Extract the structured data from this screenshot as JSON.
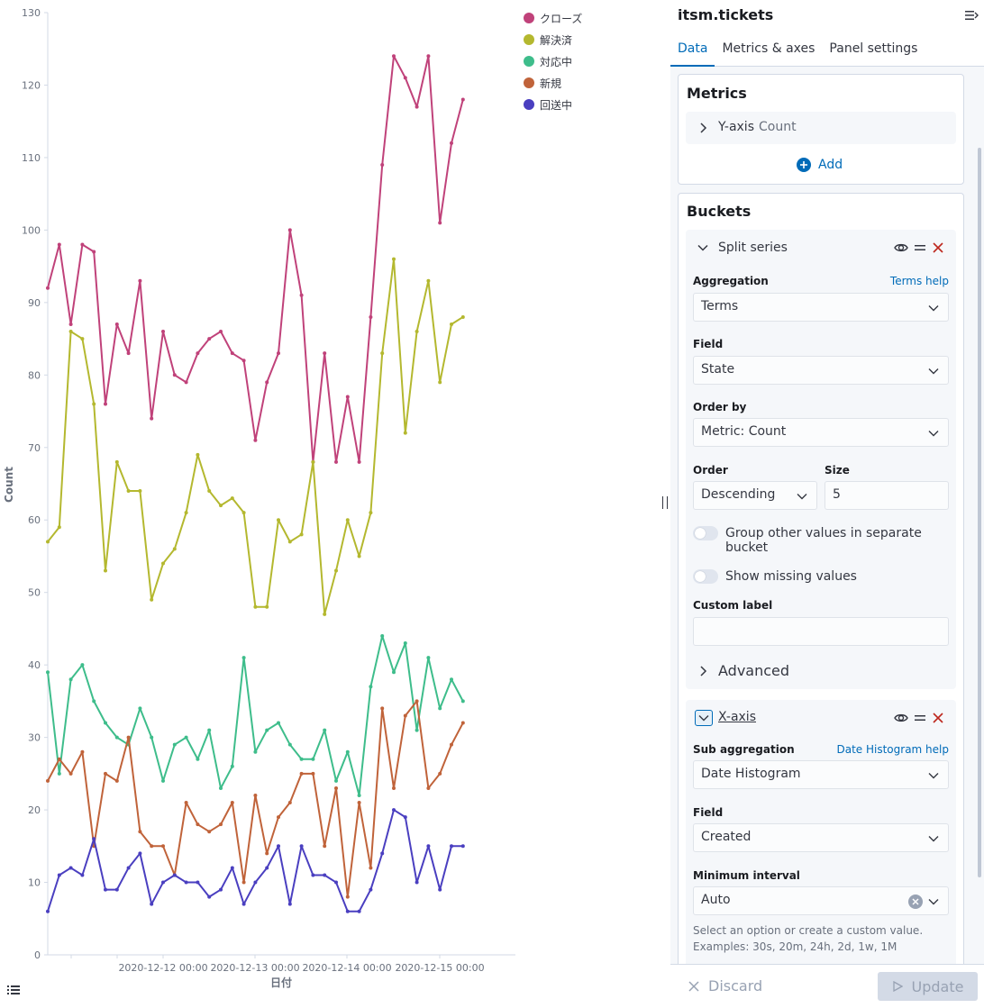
{
  "chart_data": {
    "type": "line",
    "ylabel": "Count",
    "xlabel": "日付",
    "ylim": [
      0,
      130
    ],
    "yticks": [
      0,
      10,
      20,
      30,
      40,
      50,
      60,
      70,
      80,
      90,
      100,
      110,
      120,
      130
    ],
    "xticks": [
      "2020-12-12 00:00",
      "2020-12-13 00:00",
      "2020-12-14 00:00",
      "2020-12-15 00:00"
    ],
    "series": [
      {
        "name": "クローズ",
        "color": "#c0427a",
        "values": [
          92,
          98,
          87,
          98,
          97,
          76,
          87,
          83,
          93,
          74,
          86,
          80,
          79,
          83,
          85,
          86,
          83,
          82,
          71,
          79,
          83,
          100,
          91,
          68,
          83,
          68,
          77,
          68,
          88,
          109,
          124,
          121,
          117,
          124,
          101,
          112,
          118
        ]
      },
      {
        "name": "解決済",
        "color": "#b4b82f",
        "values": [
          57,
          59,
          86,
          85,
          76,
          53,
          68,
          64,
          64,
          49,
          54,
          56,
          61,
          69,
          64,
          62,
          63,
          61,
          48,
          48,
          60,
          57,
          58,
          68,
          47,
          53,
          60,
          55,
          61,
          83,
          96,
          72,
          86,
          93,
          79,
          87,
          88
        ]
      },
      {
        "name": "対応中",
        "color": "#3ebd8b",
        "values": [
          39,
          25,
          38,
          40,
          35,
          32,
          30,
          29,
          34,
          30,
          24,
          29,
          30,
          27,
          31,
          23,
          26,
          41,
          28,
          31,
          32,
          29,
          27,
          27,
          31,
          24,
          28,
          22,
          37,
          44,
          39,
          43,
          31,
          41,
          34,
          38,
          35
        ]
      },
      {
        "name": "新規",
        "color": "#c0633a",
        "values": [
          24,
          27,
          25,
          28,
          15,
          25,
          24,
          30,
          17,
          15,
          15,
          11,
          21,
          18,
          17,
          18,
          21,
          10,
          22,
          14,
          19,
          21,
          25,
          25,
          15,
          23,
          8,
          21,
          12,
          34,
          23,
          33,
          35,
          23,
          25,
          29,
          32
        ]
      },
      {
        "name": "回送中",
        "color": "#4a3fc0",
        "values": [
          6,
          11,
          12,
          11,
          16,
          9,
          9,
          12,
          14,
          7,
          10,
          11,
          10,
          10,
          8,
          9,
          12,
          7,
          10,
          12,
          15,
          7,
          15,
          11,
          11,
          10,
          6,
          6,
          9,
          14,
          20,
          19,
          10,
          15,
          9,
          15,
          15
        ]
      }
    ]
  },
  "icons": {
    "list": "list-icon",
    "collapse": "menu-right-icon",
    "eye": "eye-icon",
    "drag": "grab-icon",
    "remove": "cross-icon",
    "add": "plus-circle-icon",
    "clear": "clear-icon",
    "play": "play-icon"
  },
  "panel": {
    "title": "itsm.tickets",
    "tabs": [
      "Data",
      "Metrics & axes",
      "Panel settings"
    ],
    "metrics": {
      "title": "Metrics",
      "yaxis_label": "Y-axis",
      "yaxis_value": "Count",
      "add_label": "Add"
    },
    "buckets": {
      "title": "Buckets",
      "split": {
        "title": "Split series",
        "aggregation_label": "Aggregation",
        "aggregation_help": "Terms help",
        "aggregation_value": "Terms",
        "field_label": "Field",
        "field_value": "State",
        "orderby_label": "Order by",
        "orderby_value": "Metric: Count",
        "order_label": "Order",
        "order_value": "Descending",
        "size_label": "Size",
        "size_value": "5",
        "group_other_label": "Group other values in separate bucket",
        "show_missing_label": "Show missing values",
        "custom_label_label": "Custom label",
        "custom_label_value": "",
        "advanced_label": "Advanced"
      },
      "xaxis": {
        "title": "X-axis",
        "subagg_label": "Sub aggregation",
        "subagg_help": "Date Histogram help",
        "subagg_value": "Date Histogram",
        "field_label": "Field",
        "field_value": "Created",
        "interval_label": "Minimum interval",
        "interval_value": "Auto",
        "hint_line1": "Select an option or create a custom value.",
        "hint_line2": "Examples: 30s, 20m, 24h, 2d, 1w, 1M"
      }
    },
    "footer": {
      "discard_label": "Discard",
      "update_label": "Update"
    }
  }
}
